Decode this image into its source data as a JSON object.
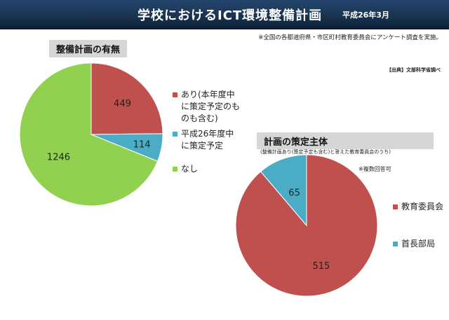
{
  "header": {
    "title": "学校におけるICT環境整備計画",
    "date": "平成26年3月"
  },
  "note_top": "※全国の各都道府県・市区町村教育委員会にアンケート調査を実施。",
  "source": "【出典】文部科学省調べ",
  "colors": {
    "header_bg": "#1b3654",
    "red": "#c0504d",
    "blue": "#4bacc6",
    "green": "#92d050",
    "panel_header": "#d6d6d6"
  },
  "chart_data": [
    {
      "type": "pie",
      "title": "整備計画の有無",
      "start_angle_deg": 0,
      "direction": "clockwise",
      "series": [
        {
          "label": "あり(本年度中\nに策定予定のも\nのも含む)",
          "value": 449,
          "color": "#c0504d"
        },
        {
          "label": "平成26年度中\nに策定予定",
          "value": 114,
          "color": "#4bacc6"
        },
        {
          "label": "なし",
          "value": 1246,
          "color": "#92d050"
        }
      ]
    },
    {
      "type": "pie",
      "title": "計画の策定主体",
      "subtitle": "(整備計画あり(策定予定も含む)と答えた教育委員会のうち)",
      "note": "※複数回答可",
      "start_angle_deg": 0,
      "direction": "clockwise",
      "series": [
        {
          "label": "教育委員会",
          "value": 515,
          "color": "#c0504d"
        },
        {
          "label": "首長部局",
          "value": 65,
          "color": "#4bacc6"
        }
      ]
    }
  ]
}
